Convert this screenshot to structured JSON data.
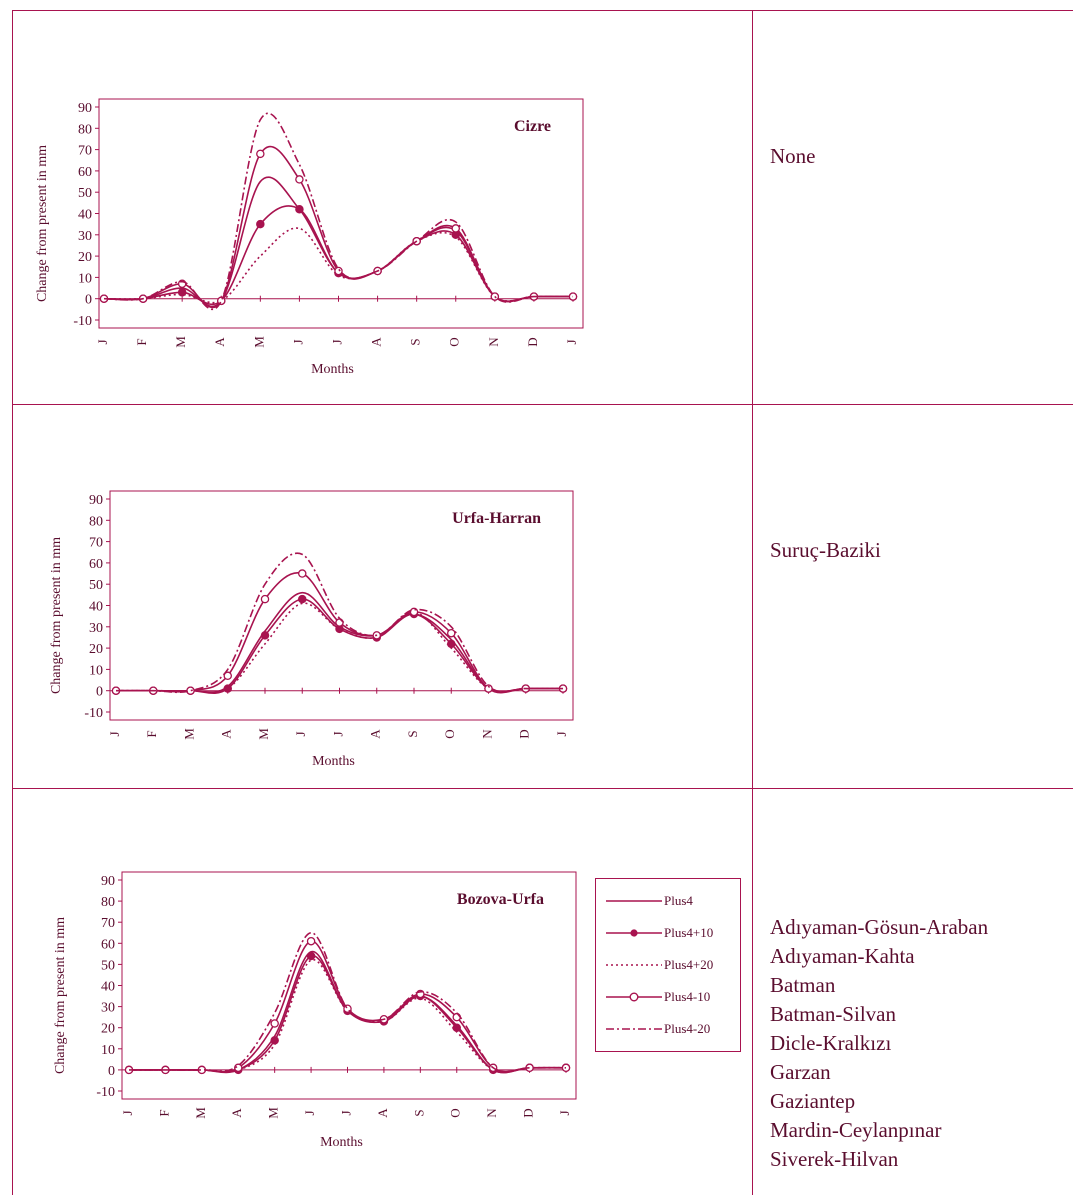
{
  "chart_data": [
    {
      "type": "line",
      "title": "Cizre",
      "xlabel": "Months",
      "ylabel": "Change from present  in mm",
      "ylim": [
        -10,
        90
      ],
      "yticks": [
        "90",
        "80",
        "70",
        "60",
        "50",
        "40",
        "30",
        "20",
        "10",
        "0",
        "-10"
      ],
      "categories": [
        "J",
        "F",
        "M",
        "A",
        "M",
        "J",
        "J",
        "A",
        "S",
        "O",
        "N",
        "D",
        "J"
      ],
      "series": [
        {
          "name": "Plus4",
          "values": [
            0,
            0,
            5,
            -1,
            55,
            42,
            12,
            13,
            27,
            32,
            1,
            1,
            1
          ]
        },
        {
          "name": "Plus4+10",
          "values": [
            0,
            0,
            3,
            -1,
            35,
            42,
            12,
            13,
            27,
            30,
            1,
            1,
            1
          ]
        },
        {
          "name": "Plus4+20",
          "values": [
            0,
            0,
            2,
            -1,
            20,
            33,
            11,
            13,
            27,
            29,
            1,
            1,
            1
          ]
        },
        {
          "name": "Plus4-10",
          "values": [
            0,
            0,
            7,
            -1,
            68,
            56,
            13,
            13,
            27,
            33,
            1,
            1,
            1
          ]
        },
        {
          "name": "Plus4-20",
          "values": [
            0,
            0,
            8,
            -1,
            84,
            63,
            14,
            13,
            27,
            36,
            1,
            1,
            1
          ]
        }
      ]
    },
    {
      "type": "line",
      "title": "Urfa-Harran",
      "xlabel": "Months",
      "ylabel": "Change from present in mm",
      "ylim": [
        -10,
        90
      ],
      "yticks": [
        "90",
        "80",
        "70",
        "60",
        "50",
        "40",
        "30",
        "20",
        "10",
        "0",
        "-10"
      ],
      "categories": [
        "J",
        "F",
        "M",
        "A",
        "M",
        "J",
        "J",
        "A",
        "S",
        "O",
        "N",
        "D",
        "J"
      ],
      "series": [
        {
          "name": "Plus4",
          "values": [
            0,
            0,
            0,
            2,
            28,
            46,
            30,
            26,
            36,
            24,
            1,
            1,
            1
          ]
        },
        {
          "name": "Plus4+10",
          "values": [
            0,
            0,
            0,
            1,
            26,
            43,
            29,
            25,
            36,
            22,
            1,
            1,
            1
          ]
        },
        {
          "name": "Plus4+20",
          "values": [
            0,
            0,
            0,
            1,
            22,
            41,
            29,
            25,
            37,
            20,
            1,
            1,
            1
          ]
        },
        {
          "name": "Plus4-10",
          "values": [
            0,
            0,
            0,
            7,
            43,
            55,
            32,
            26,
            37,
            27,
            1,
            1,
            1
          ]
        },
        {
          "name": "Plus4-20",
          "values": [
            0,
            0,
            0,
            10,
            50,
            64,
            34,
            26,
            38,
            30,
            2,
            1,
            1
          ]
        }
      ]
    },
    {
      "type": "line",
      "title": "Bozova-Urfa",
      "xlabel": "Months",
      "ylabel": "Change from present  in mm",
      "ylim": [
        -10,
        90
      ],
      "yticks": [
        "90",
        "80",
        "70",
        "60",
        "50",
        "40",
        "30",
        "20",
        "10",
        "0",
        "-10"
      ],
      "categories": [
        "J",
        "F",
        "M",
        "A",
        "M",
        "J",
        "J",
        "A",
        "S",
        "O",
        "N",
        "D",
        "J"
      ],
      "series": [
        {
          "name": "Plus4",
          "values": [
            0,
            0,
            0,
            0,
            16,
            56,
            28,
            23,
            35,
            21,
            0,
            1,
            1
          ]
        },
        {
          "name": "Plus4+10",
          "values": [
            0,
            0,
            0,
            0,
            14,
            54,
            28,
            23,
            35,
            20,
            0,
            1,
            1
          ]
        },
        {
          "name": "Plus4+20",
          "values": [
            0,
            0,
            0,
            0,
            12,
            52,
            28,
            23,
            34,
            18,
            0,
            1,
            1
          ]
        },
        {
          "name": "Plus4-10",
          "values": [
            0,
            0,
            0,
            1,
            22,
            61,
            29,
            24,
            36,
            25,
            1,
            1,
            1
          ]
        },
        {
          "name": "Plus4-20",
          "values": [
            0,
            0,
            0,
            2,
            27,
            65,
            29,
            24,
            37,
            27,
            1,
            1,
            1
          ]
        }
      ]
    }
  ],
  "legend": [
    "Plus4",
    "Plus4+10",
    "Plus4+20",
    "Plus4-10",
    "Plus4-20"
  ],
  "right_cells": {
    "row1": "None",
    "row2": "Suruç-Baziki",
    "row3": [
      "Adıyaman-Gösun-Araban",
      "Adıyaman-Kahta",
      "Batman",
      "Batman-Silvan",
      "Dicle-Kralkızı",
      "Garzan",
      "Gaziantep",
      "Mardin-Ceylanpınar",
      "Siverek-Hilvan"
    ]
  },
  "colors": {
    "ink": "#a8134f",
    "text": "#5a0d2e"
  }
}
